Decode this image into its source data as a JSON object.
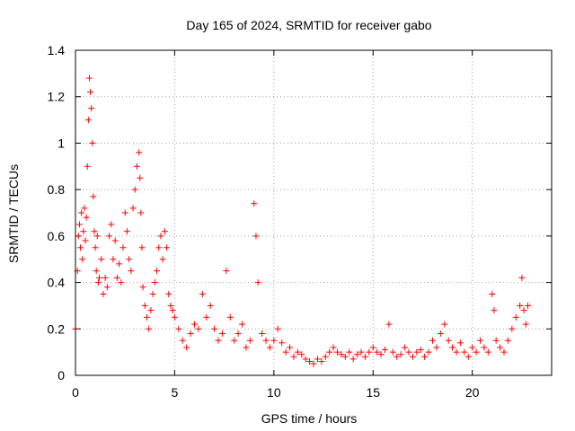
{
  "chart_data": {
    "type": "scatter",
    "title": "Day 165 of 2024, SRMTID for receiver gabo",
    "xlabel": "GPS time / hours",
    "ylabel": "SRMTID / TECUs",
    "xlim": [
      0,
      24
    ],
    "ylim": [
      0,
      1.4
    ],
    "xticks": [
      0,
      5,
      10,
      15,
      20
    ],
    "xtick_labels": [
      "0",
      "5",
      "10",
      "15",
      "20"
    ],
    "yticks": [
      0,
      0.2,
      0.4,
      0.6,
      0.8,
      1,
      1.2,
      1.4
    ],
    "ytick_labels": [
      "0",
      "0.2",
      "0.4",
      "0.6",
      "0.8",
      "1",
      "1.2",
      "1.4"
    ],
    "grid": true,
    "marker": "+",
    "marker_color": "#ff0000",
    "series": [
      {
        "name": "SRMTID",
        "x": [
          0.0,
          0.1,
          0.15,
          0.2,
          0.25,
          0.3,
          0.35,
          0.4,
          0.45,
          0.5,
          0.55,
          0.6,
          0.65,
          0.7,
          0.75,
          0.8,
          0.85,
          0.9,
          0.95,
          1.0,
          1.05,
          1.1,
          1.15,
          1.2,
          1.3,
          1.4,
          1.5,
          1.6,
          1.7,
          1.8,
          1.9,
          2.0,
          2.1,
          2.2,
          2.3,
          2.4,
          2.5,
          2.6,
          2.7,
          2.8,
          2.9,
          3.0,
          3.1,
          3.2,
          3.25,
          3.3,
          3.35,
          3.4,
          3.5,
          3.6,
          3.7,
          3.8,
          3.9,
          4.0,
          4.1,
          4.2,
          4.3,
          4.4,
          4.5,
          4.6,
          4.7,
          4.8,
          4.9,
          5.0,
          5.2,
          5.4,
          5.6,
          5.8,
          6.0,
          6.2,
          6.4,
          6.6,
          6.8,
          7.0,
          7.2,
          7.4,
          7.6,
          7.8,
          8.0,
          8.2,
          8.4,
          8.6,
          8.8,
          9.0,
          9.1,
          9.2,
          9.4,
          9.6,
          9.8,
          10.0,
          10.2,
          10.4,
          10.6,
          10.8,
          11.0,
          11.2,
          11.4,
          11.6,
          11.8,
          12.0,
          12.2,
          12.4,
          12.6,
          12.8,
          13.0,
          13.2,
          13.4,
          13.6,
          13.8,
          14.0,
          14.2,
          14.4,
          14.6,
          14.8,
          15.0,
          15.2,
          15.4,
          15.6,
          15.8,
          16.0,
          16.2,
          16.4,
          16.6,
          16.8,
          17.0,
          17.2,
          17.4,
          17.6,
          17.8,
          18.0,
          18.2,
          18.4,
          18.6,
          18.8,
          19.0,
          19.2,
          19.4,
          19.6,
          19.8,
          20.0,
          20.2,
          20.4,
          20.6,
          20.8,
          21.0,
          21.1,
          21.2,
          21.4,
          21.6,
          21.8,
          22.0,
          22.2,
          22.4,
          22.5,
          22.6,
          22.7,
          22.8
        ],
        "y": [
          0.2,
          0.45,
          0.6,
          0.65,
          0.55,
          0.7,
          0.5,
          0.62,
          0.72,
          0.58,
          0.68,
          0.9,
          1.1,
          1.28,
          1.22,
          1.15,
          1.0,
          0.77,
          0.62,
          0.55,
          0.45,
          0.6,
          0.4,
          0.42,
          0.5,
          0.35,
          0.42,
          0.38,
          0.6,
          0.65,
          0.5,
          0.58,
          0.42,
          0.48,
          0.4,
          0.55,
          0.7,
          0.62,
          0.5,
          0.45,
          0.72,
          0.8,
          0.9,
          0.96,
          0.85,
          0.7,
          0.55,
          0.38,
          0.3,
          0.25,
          0.2,
          0.28,
          0.35,
          0.4,
          0.45,
          0.55,
          0.6,
          0.5,
          0.62,
          0.55,
          0.35,
          0.3,
          0.28,
          0.25,
          0.2,
          0.15,
          0.12,
          0.18,
          0.22,
          0.2,
          0.35,
          0.25,
          0.3,
          0.2,
          0.15,
          0.18,
          0.45,
          0.25,
          0.15,
          0.18,
          0.22,
          0.12,
          0.15,
          0.74,
          0.6,
          0.4,
          0.18,
          0.15,
          0.12,
          0.15,
          0.2,
          0.14,
          0.1,
          0.12,
          0.08,
          0.1,
          0.09,
          0.07,
          0.06,
          0.05,
          0.07,
          0.06,
          0.08,
          0.1,
          0.12,
          0.1,
          0.09,
          0.08,
          0.1,
          0.07,
          0.09,
          0.1,
          0.08,
          0.1,
          0.12,
          0.1,
          0.09,
          0.11,
          0.22,
          0.1,
          0.08,
          0.09,
          0.12,
          0.1,
          0.08,
          0.1,
          0.11,
          0.08,
          0.1,
          0.15,
          0.12,
          0.18,
          0.22,
          0.15,
          0.12,
          0.1,
          0.14,
          0.1,
          0.08,
          0.12,
          0.1,
          0.15,
          0.12,
          0.1,
          0.35,
          0.28,
          0.15,
          0.12,
          0.1,
          0.15,
          0.2,
          0.25,
          0.3,
          0.42,
          0.28,
          0.22,
          0.3
        ]
      }
    ]
  }
}
